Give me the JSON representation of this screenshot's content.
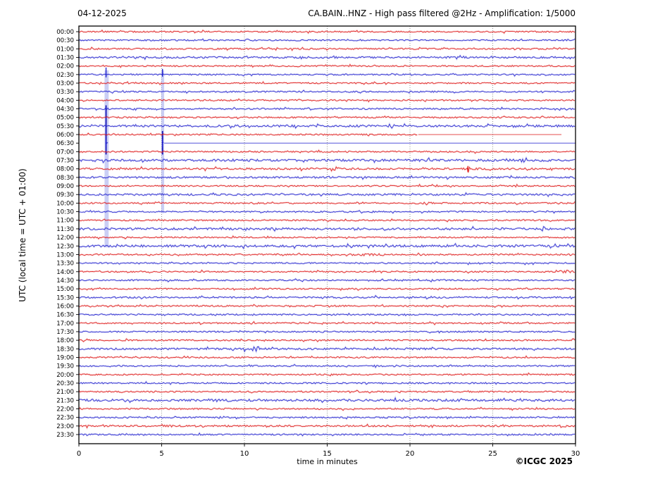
{
  "chart_data": {
    "type": "helicorder",
    "date": "04-12-2025",
    "title": "CA.BAIN..HNZ - High pass filtered @2Hz - Amplification: 1/5000",
    "xlabel": "time in minutes",
    "ylabel": "UTC (local time = UTC + 01:00)",
    "copyright": "©ICGC 2025",
    "xlim": [
      0,
      30
    ],
    "x_ticks": [
      0,
      5,
      10,
      15,
      20,
      25,
      30
    ],
    "minutes_per_row": 30,
    "rows": [
      "00:00",
      "00:30",
      "01:00",
      "01:30",
      "02:00",
      "02:30",
      "03:00",
      "03:30",
      "04:00",
      "04:30",
      "05:00",
      "05:30",
      "06:00",
      "06:30",
      "07:00",
      "07:30",
      "08:00",
      "08:30",
      "09:00",
      "09:30",
      "10:00",
      "10:30",
      "11:00",
      "11:30",
      "12:00",
      "12:30",
      "13:00",
      "13:30",
      "14:00",
      "14:30",
      "15:00",
      "15:30",
      "16:00",
      "16:30",
      "17:00",
      "17:30",
      "18:00",
      "18:30",
      "19:00",
      "19:30",
      "20:00",
      "20:30",
      "21:00",
      "21:30",
      "22:00",
      "22:30",
      "23:00",
      "23:30"
    ],
    "trace_colors": {
      "hour": "#dd1111",
      "half_hour": "#1a1acc"
    },
    "grid": {
      "vertical_every_min": 5,
      "style": "dotted",
      "color": "#888888"
    },
    "frame_color": "#000000",
    "background": "#ffffff",
    "noise_amp_overrides": {
      "01:30": 1.3,
      "05:30": 1.5,
      "07:30": 1.6,
      "08:00": 1.3,
      "08:30": 1.3,
      "09:30": 1.3,
      "11:30": 1.5,
      "12:30": 1.6,
      "15:30": 1.2,
      "18:30": 1.3,
      "21:30": 1.6,
      "23:00": 1.2
    },
    "events": {
      "streaks": [
        {
          "x0": 1.55,
          "x1": 1.8,
          "row_start": "02:30",
          "row_end": "12:30",
          "core_x": 1.64,
          "core_row_start": "04:30",
          "core_row_end": "07:00",
          "fill": "#97a0ec",
          "core_color": "#0f0fb4"
        },
        {
          "x0": 4.98,
          "x1": 5.15,
          "row_start": "02:30",
          "row_end": "10:30",
          "core_x": 5.05,
          "core_row_start": "06:00",
          "core_row_end": "07:00",
          "fill": "#97a0ec",
          "core_color": "#0f0fb4"
        }
      ],
      "spikes": [
        {
          "row": "02:30",
          "x": 1.64,
          "up": 10,
          "down": 4
        },
        {
          "row": "02:30",
          "x": 5.05,
          "up": 8,
          "down": 3
        },
        {
          "row": "06:30",
          "x": 1.64,
          "up": 5,
          "down": 5
        },
        {
          "row": "06:30",
          "x": 5.05,
          "up": 6,
          "down": 6
        },
        {
          "row": "08:00",
          "x": 23.5,
          "up": 4,
          "down": 4
        }
      ],
      "bursts": [
        {
          "row": "08:00",
          "x0": 15.2,
          "x1": 15.8,
          "amp": 3.0
        },
        {
          "row": "08:00",
          "x0": 23.35,
          "x1": 23.65,
          "amp": 4.0
        },
        {
          "row": "18:30",
          "x0": 9.95,
          "x1": 10.9,
          "amp": 3.0
        },
        {
          "row": "14:00",
          "x0": 28.7,
          "x1": 30.0,
          "amp": 2.2
        },
        {
          "row": "13:00",
          "x0": 16.5,
          "x1": 18.5,
          "amp": 1.7
        },
        {
          "row": "10:00",
          "x0": 20.0,
          "x1": 21.5,
          "amp": 1.6
        }
      ],
      "flat_segments": [
        {
          "row": "06:30",
          "x0": 5.15,
          "x1": 30.0
        },
        {
          "row": "06:00",
          "x0": 20.5,
          "x1": 29.15
        }
      ],
      "gaps": [
        {
          "row": "06:30",
          "x0": 0.0,
          "x1": 1.55
        },
        {
          "row": "06:30",
          "x0": 1.8,
          "x1": 4.98
        },
        {
          "row": "06:00",
          "x0": 29.15,
          "x1": 30.0
        }
      ]
    }
  }
}
